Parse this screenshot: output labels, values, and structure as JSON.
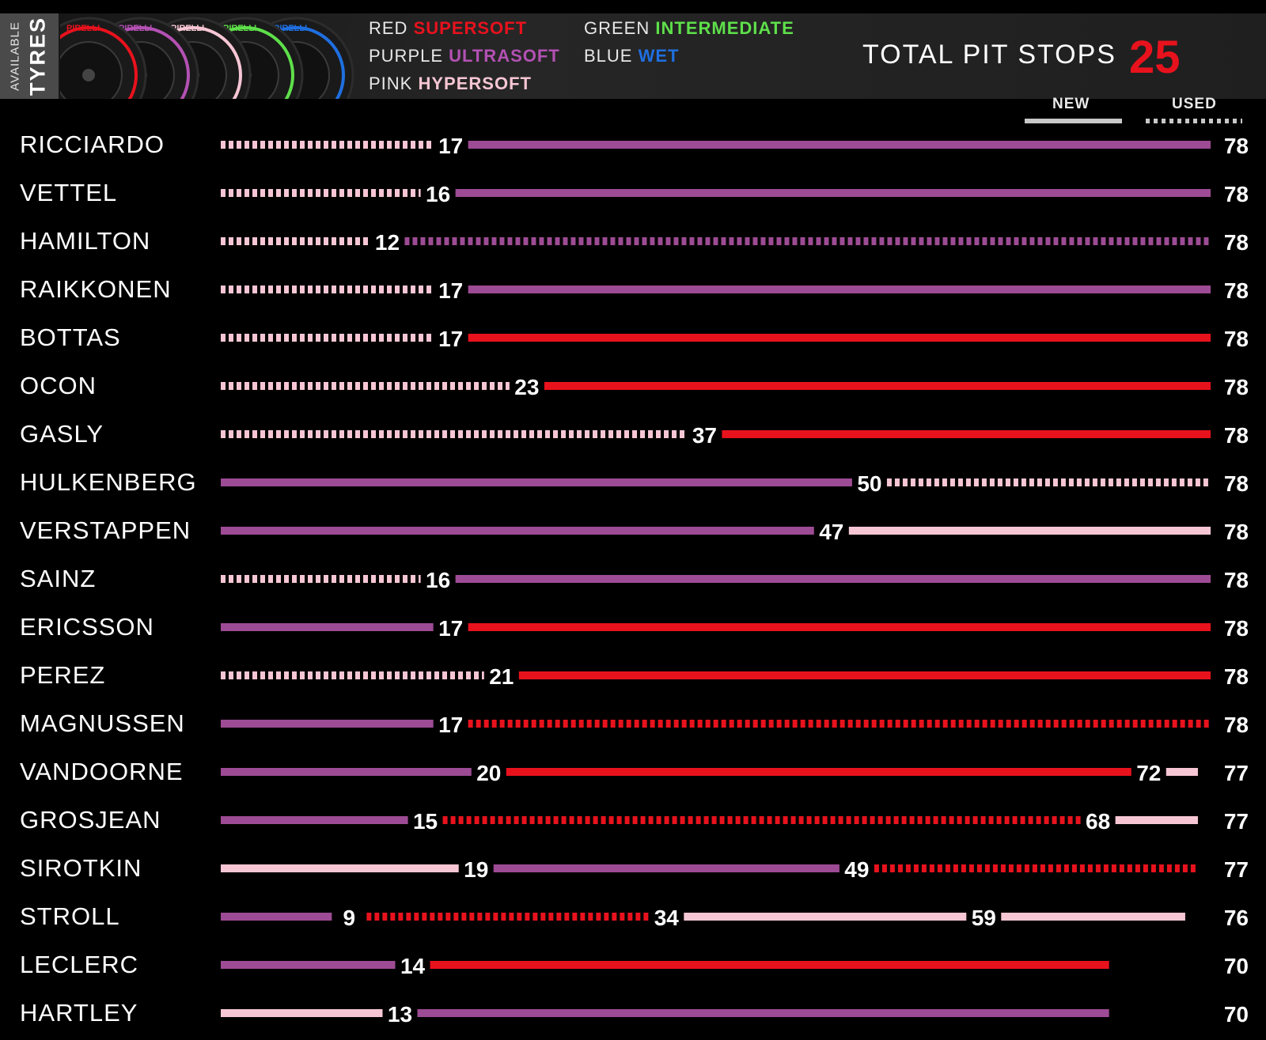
{
  "header": {
    "available_small": "AVAILABLE",
    "available_big": "TYRES",
    "tyre_brand": "PIRELLI",
    "legend": [
      {
        "color_word": "RED",
        "compound": "SUPERSOFT",
        "color": "#e8121d"
      },
      {
        "color_word": "PURPLE",
        "compound": "ULTRASOFT",
        "color": "#b451b4"
      },
      {
        "color_word": "PINK",
        "compound": "HYPERSOFT",
        "color": "#f7c6d4"
      },
      {
        "color_word": "GREEN",
        "compound": "INTERMEDIATE",
        "color": "#5ee04a"
      },
      {
        "color_word": "BLUE",
        "compound": "WET",
        "color": "#1f6fe0"
      }
    ],
    "total_label": "TOTAL PIT STOPS",
    "total_value": "25"
  },
  "key": {
    "new_label": "NEW",
    "used_label": "USED"
  },
  "chart_data": {
    "type": "bar",
    "subtype": "horizontal stacked stint timeline",
    "x_unit": "lap",
    "xlim": [
      0,
      78
    ],
    "compound_colors": {
      "hypersoft": "#f7c6d4",
      "ultrasoft": "#9d4b94",
      "supersoft": "#e8121d"
    },
    "drivers": [
      {
        "name": "RICCIARDO",
        "final_lap": 78,
        "stints": [
          {
            "compound": "hypersoft",
            "condition": "used",
            "start": 0,
            "end": 17
          },
          {
            "compound": "ultrasoft",
            "condition": "new",
            "start": 17,
            "end": 78
          }
        ]
      },
      {
        "name": "VETTEL",
        "final_lap": 78,
        "stints": [
          {
            "compound": "hypersoft",
            "condition": "used",
            "start": 0,
            "end": 16
          },
          {
            "compound": "ultrasoft",
            "condition": "new",
            "start": 16,
            "end": 78
          }
        ]
      },
      {
        "name": "HAMILTON",
        "final_lap": 78,
        "stints": [
          {
            "compound": "hypersoft",
            "condition": "used",
            "start": 0,
            "end": 12
          },
          {
            "compound": "ultrasoft",
            "condition": "used",
            "start": 12,
            "end": 78
          }
        ]
      },
      {
        "name": "RAIKKONEN",
        "final_lap": 78,
        "stints": [
          {
            "compound": "hypersoft",
            "condition": "used",
            "start": 0,
            "end": 17
          },
          {
            "compound": "ultrasoft",
            "condition": "new",
            "start": 17,
            "end": 78
          }
        ]
      },
      {
        "name": "BOTTAS",
        "final_lap": 78,
        "stints": [
          {
            "compound": "hypersoft",
            "condition": "used",
            "start": 0,
            "end": 17
          },
          {
            "compound": "supersoft",
            "condition": "new",
            "start": 17,
            "end": 78
          }
        ]
      },
      {
        "name": "OCON",
        "final_lap": 78,
        "stints": [
          {
            "compound": "hypersoft",
            "condition": "used",
            "start": 0,
            "end": 23
          },
          {
            "compound": "supersoft",
            "condition": "new",
            "start": 23,
            "end": 78
          }
        ]
      },
      {
        "name": "GASLY",
        "final_lap": 78,
        "stints": [
          {
            "compound": "hypersoft",
            "condition": "used",
            "start": 0,
            "end": 37
          },
          {
            "compound": "supersoft",
            "condition": "new",
            "start": 37,
            "end": 78
          }
        ]
      },
      {
        "name": "HULKENBERG",
        "final_lap": 78,
        "stints": [
          {
            "compound": "ultrasoft",
            "condition": "new",
            "start": 0,
            "end": 50
          },
          {
            "compound": "hypersoft",
            "condition": "used",
            "start": 50,
            "end": 78
          }
        ]
      },
      {
        "name": "VERSTAPPEN",
        "final_lap": 78,
        "stints": [
          {
            "compound": "ultrasoft",
            "condition": "new",
            "start": 0,
            "end": 47
          },
          {
            "compound": "hypersoft",
            "condition": "new",
            "start": 47,
            "end": 78
          }
        ]
      },
      {
        "name": "SAINZ",
        "final_lap": 78,
        "stints": [
          {
            "compound": "hypersoft",
            "condition": "used",
            "start": 0,
            "end": 16
          },
          {
            "compound": "ultrasoft",
            "condition": "new",
            "start": 16,
            "end": 78
          }
        ]
      },
      {
        "name": "ERICSSON",
        "final_lap": 78,
        "stints": [
          {
            "compound": "ultrasoft",
            "condition": "new",
            "start": 0,
            "end": 17
          },
          {
            "compound": "supersoft",
            "condition": "new",
            "start": 17,
            "end": 78
          }
        ]
      },
      {
        "name": "PEREZ",
        "final_lap": 78,
        "stints": [
          {
            "compound": "hypersoft",
            "condition": "used",
            "start": 0,
            "end": 21
          },
          {
            "compound": "supersoft",
            "condition": "new",
            "start": 21,
            "end": 78
          }
        ]
      },
      {
        "name": "MAGNUSSEN",
        "final_lap": 78,
        "stints": [
          {
            "compound": "ultrasoft",
            "condition": "new",
            "start": 0,
            "end": 17
          },
          {
            "compound": "supersoft",
            "condition": "used",
            "start": 17,
            "end": 78
          }
        ]
      },
      {
        "name": "VANDOORNE",
        "final_lap": 77,
        "stints": [
          {
            "compound": "ultrasoft",
            "condition": "new",
            "start": 0,
            "end": 20
          },
          {
            "compound": "supersoft",
            "condition": "new",
            "start": 20,
            "end": 72
          },
          {
            "compound": "hypersoft",
            "condition": "new",
            "start": 72,
            "end": 77
          }
        ]
      },
      {
        "name": "GROSJEAN",
        "final_lap": 77,
        "stints": [
          {
            "compound": "ultrasoft",
            "condition": "new",
            "start": 0,
            "end": 15
          },
          {
            "compound": "supersoft",
            "condition": "used",
            "start": 15,
            "end": 68
          },
          {
            "compound": "hypersoft",
            "condition": "new",
            "start": 68,
            "end": 77
          }
        ]
      },
      {
        "name": "SIROTKIN",
        "final_lap": 77,
        "stints": [
          {
            "compound": "hypersoft",
            "condition": "new",
            "start": 0,
            "end": 19
          },
          {
            "compound": "ultrasoft",
            "condition": "new",
            "start": 19,
            "end": 49
          },
          {
            "compound": "supersoft",
            "condition": "used",
            "start": 49,
            "end": 77
          }
        ]
      },
      {
        "name": "STROLL",
        "final_lap": 76,
        "stints": [
          {
            "compound": "ultrasoft",
            "condition": "new",
            "start": 0,
            "end": 9
          },
          {
            "compound": "supersoft",
            "condition": "used",
            "start": 9,
            "end": 34
          },
          {
            "compound": "hypersoft",
            "condition": "new",
            "start": 34,
            "end": 59
          },
          {
            "compound": "hypersoft",
            "condition": "new",
            "start": 59,
            "end": 76
          }
        ]
      },
      {
        "name": "LECLERC",
        "final_lap": 70,
        "stints": [
          {
            "compound": "ultrasoft",
            "condition": "new",
            "start": 0,
            "end": 14
          },
          {
            "compound": "supersoft",
            "condition": "new",
            "start": 14,
            "end": 70
          }
        ]
      },
      {
        "name": "HARTLEY",
        "final_lap": 70,
        "stints": [
          {
            "compound": "hypersoft",
            "condition": "new",
            "start": 0,
            "end": 13
          },
          {
            "compound": "ultrasoft",
            "condition": "new",
            "start": 13,
            "end": 70
          }
        ]
      }
    ]
  }
}
